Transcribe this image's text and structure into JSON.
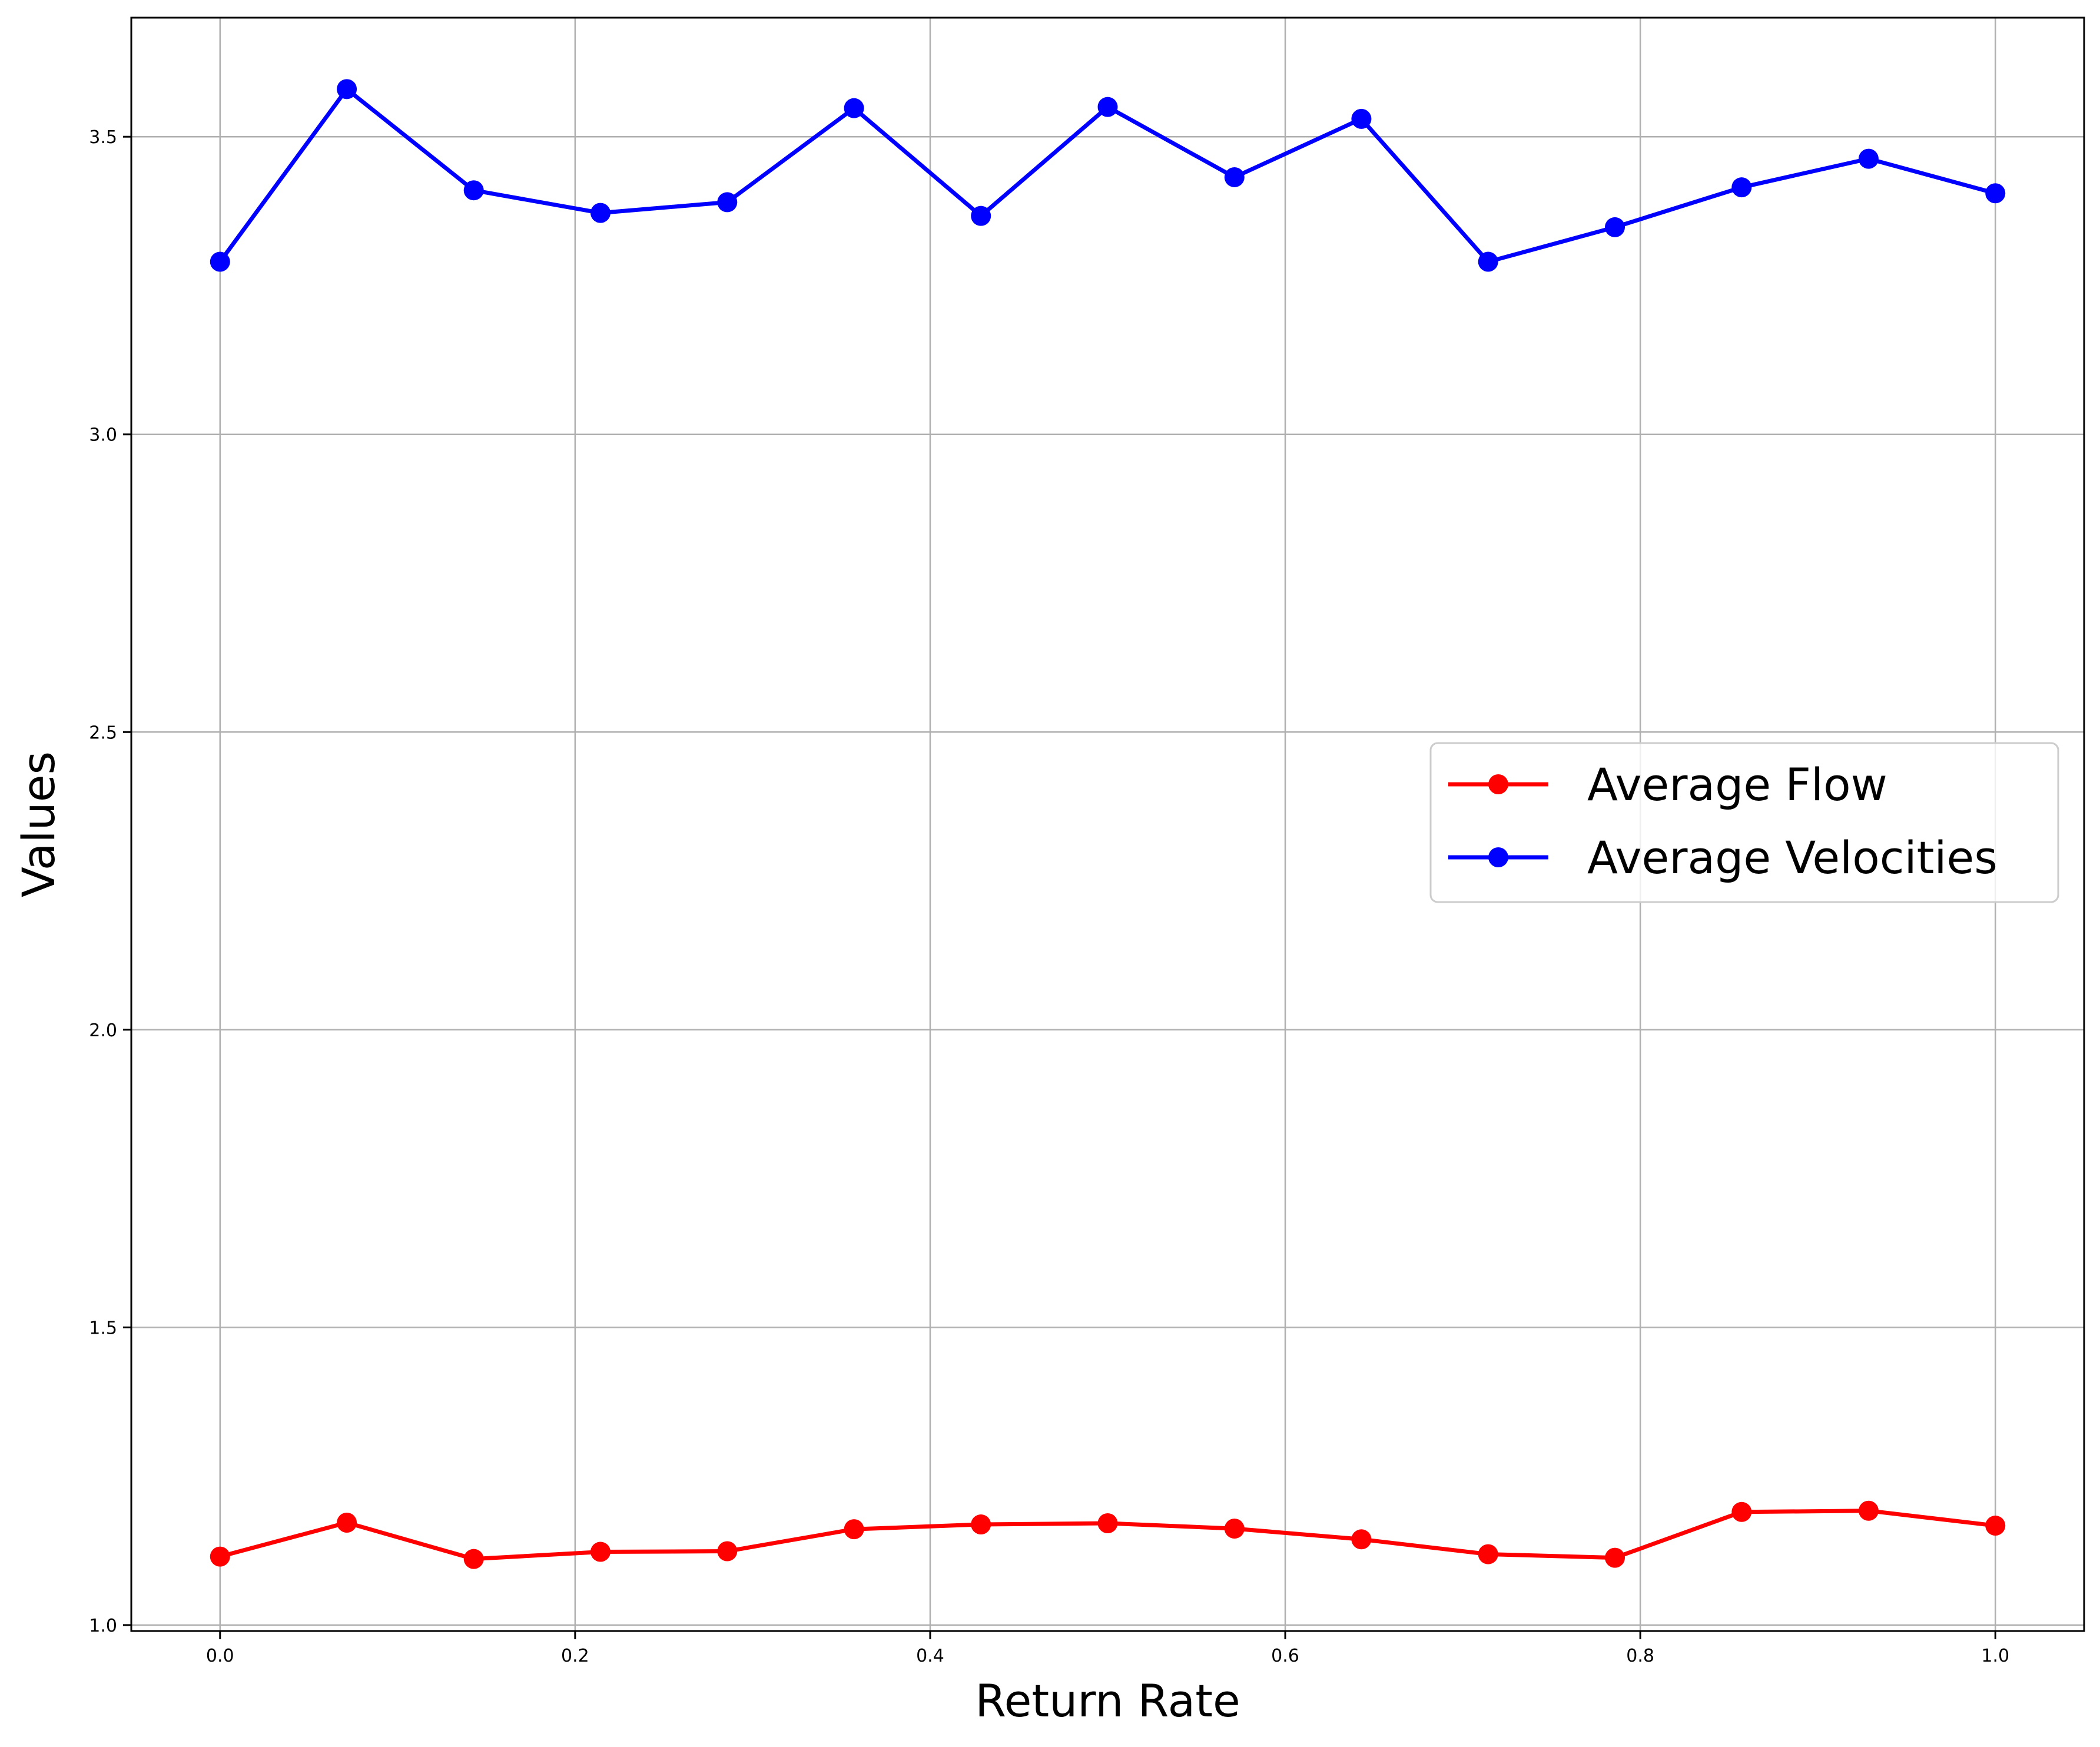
{
  "chart_data": {
    "type": "line",
    "title": "",
    "xlabel": "Return Rate",
    "ylabel": "Values",
    "xlim": [
      -0.05,
      1.05
    ],
    "ylim": [
      0.99,
      3.7
    ],
    "xticks": [
      0.0,
      0.2,
      0.4,
      0.6,
      0.8,
      1.0
    ],
    "xtick_labels": [
      "0.0",
      "0.2",
      "0.4",
      "0.6",
      "0.8",
      "1.0"
    ],
    "yticks": [
      1.0,
      1.5,
      2.0,
      2.5,
      3.0,
      3.5
    ],
    "ytick_labels": [
      "1.0",
      "1.5",
      "2.0",
      "2.5",
      "3.0",
      "3.5"
    ],
    "grid": true,
    "legend_position": "center-right",
    "x": [
      0.0,
      0.0714,
      0.1429,
      0.2143,
      0.2857,
      0.3571,
      0.4286,
      0.5,
      0.5714,
      0.6429,
      0.7143,
      0.7857,
      0.8571,
      0.9286,
      1.0
    ],
    "series": [
      {
        "name": "Average Flow",
        "color": "#ff0000",
        "values": [
          1.115,
          1.172,
          1.111,
          1.123,
          1.124,
          1.161,
          1.169,
          1.171,
          1.162,
          1.144,
          1.119,
          1.113,
          1.19,
          1.192,
          1.167
        ]
      },
      {
        "name": "Average Velocities",
        "color": "#0000ff",
        "values": [
          3.29,
          3.58,
          3.41,
          3.372,
          3.39,
          3.548,
          3.367,
          3.55,
          3.432,
          3.53,
          3.29,
          3.348,
          3.415,
          3.463,
          3.405
        ]
      }
    ]
  }
}
